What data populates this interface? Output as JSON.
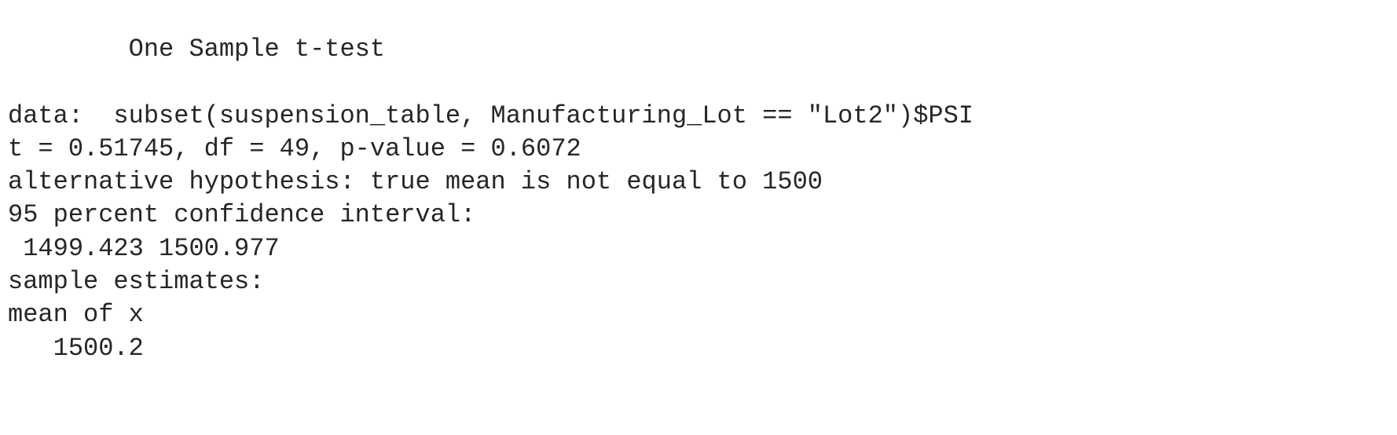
{
  "console_output": {
    "lines": [
      "        One Sample t-test",
      "",
      "data:  subset(suspension_table, Manufacturing_Lot == \"Lot2\")$PSI",
      "t = 0.51745, df = 49, p-value = 0.6072",
      "alternative hypothesis: true mean is not equal to 1500",
      "95 percent confidence interval:",
      " 1499.423 1500.977",
      "sample estimates:",
      "mean of x",
      "   1500.2"
    ]
  }
}
